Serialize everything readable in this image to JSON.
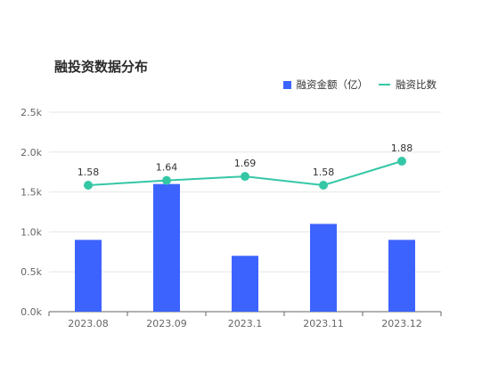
{
  "chart_data": {
    "type": "bar",
    "title": "融投资数据分布",
    "categories": [
      "2023.08",
      "2023.09",
      "2023.1",
      "2023.11",
      "2023.12"
    ],
    "series": [
      {
        "name": "融资金额（亿）",
        "type": "bar",
        "axis": "left",
        "color": "#3d63ff",
        "values": [
          900,
          1600,
          700,
          1100,
          900
        ]
      },
      {
        "name": "融资比数",
        "type": "line",
        "axis": "right",
        "color": "#34c7a6",
        "values": [
          1.58,
          1.64,
          1.69,
          1.58,
          1.88
        ],
        "labels": [
          "1.58",
          "1.64",
          "1.69",
          "1.58",
          "1.88"
        ]
      }
    ],
    "y_ticks": [
      "0.0k",
      "0.5k",
      "1.0k",
      "1.5k",
      "2.0k",
      "2.5k"
    ],
    "ylim": [
      0,
      2500
    ],
    "grid": true,
    "legend_position": "top-right"
  }
}
